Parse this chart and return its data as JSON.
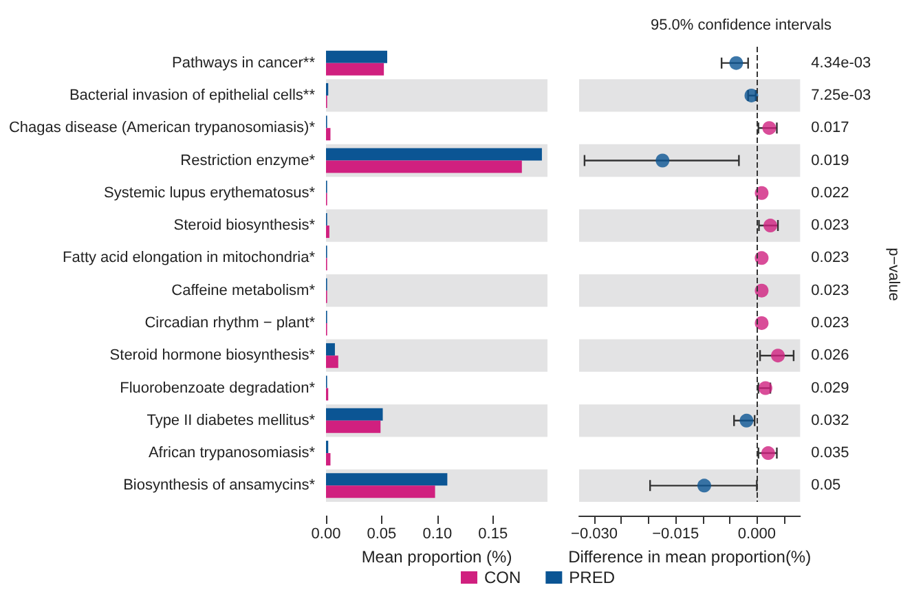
{
  "chart_data": [
    {
      "type": "bar",
      "orientation": "horizontal",
      "xlabel": "Mean proportion (%)",
      "categories": [
        "Pathways in cancer**",
        "Bacterial invasion of epithelial cells**",
        "Chagas disease (American trypanosomiasis)*",
        "Restriction enzyme*",
        "Systemic lupus erythematosus*",
        "Steroid biosynthesis*",
        "Fatty acid elongation in mitochondria*",
        "Caffeine metabolism*",
        "Circadian rhythm − plant*",
        "Steroid hormone biosynthesis*",
        "Fluorobenzoate degradation*",
        "Type II diabetes mellitus*",
        "African trypanosomiasis*",
        "Biosynthesis of ansamycins*"
      ],
      "series": [
        {
          "name": "CON",
          "color": "#d0207f",
          "values": [
            0.052,
            0.001,
            0.004,
            0.176,
            0.001,
            0.003,
            0.001,
            0.001,
            0.001,
            0.011,
            0.002,
            0.049,
            0.004,
            0.098
          ]
        },
        {
          "name": "PRED",
          "color": "#0b5594",
          "values": [
            0.055,
            0.002,
            0.001,
            0.194,
            0.001,
            0.001,
            0.001,
            0.001,
            0.001,
            0.008,
            0.001,
            0.051,
            0.002,
            0.109
          ]
        }
      ],
      "xlim": [
        0,
        0.199
      ],
      "xticks": [
        {
          "value": 0,
          "label": "0.00"
        },
        {
          "value": 0.05,
          "label": "0.05"
        },
        {
          "value": 0.1,
          "label": "0.10"
        },
        {
          "value": 0.15,
          "label": "0.15"
        }
      ],
      "legend": "bottom",
      "grid": false
    },
    {
      "type": "scatter",
      "orientation": "horizontal",
      "title": "95.0% confidence intervals",
      "xlabel": "Difference in mean proportion(%)",
      "y2label": "p−value",
      "y2_categories": [
        "4.34e-03",
        "7.25e-03",
        "0.017",
        "0.019",
        "0.022",
        "0.023",
        "0.023",
        "0.023",
        "0.023",
        "0.026",
        "0.029",
        "0.032",
        "0.035",
        "0.05"
      ],
      "values": [
        -0.0038,
        -0.001,
        0.0023,
        -0.0174,
        0.0009,
        0.0025,
        0.0009,
        0.0009,
        0.0009,
        0.0039,
        0.0016,
        -0.0019,
        0.0021,
        -0.0097
      ],
      "errors": [
        [
          -0.0065,
          -0.0016
        ],
        [
          -0.0016,
          -0.0002
        ],
        [
          0.0003,
          0.0037
        ],
        [
          -0.0318,
          -0.0033
        ],
        null,
        [
          0.0004,
          0.0039
        ],
        null,
        null,
        null,
        [
          0.0006,
          0.0068
        ],
        [
          0.0003,
          0.0025
        ],
        [
          -0.0042,
          -0.0004
        ],
        [
          0.0003,
          0.0037
        ],
        [
          -0.0197,
          0.0
        ]
      ],
      "colors": [
        "#0b5594",
        "#0b5594",
        "#d0207f",
        "#0b5594",
        "#d0207f",
        "#d0207f",
        "#d0207f",
        "#d0207f",
        "#d0207f",
        "#d0207f",
        "#d0207f",
        "#0b5594",
        "#d0207f",
        "#0b5594"
      ],
      "marker": "circle",
      "xlim": [
        -0.0328,
        0.008
      ],
      "xticks": [
        {
          "value": -0.03,
          "label": "−0.030"
        },
        {
          "value": -0.025,
          "label": null
        },
        {
          "value": -0.02,
          "label": null
        },
        {
          "value": -0.015,
          "label": "−0.015"
        },
        {
          "value": -0.01,
          "label": null
        },
        {
          "value": -0.005,
          "label": null
        },
        {
          "value": 0,
          "label": "0.000"
        },
        {
          "value": 0.005,
          "label": null
        }
      ],
      "ref_lines": [
        {
          "axis": "x",
          "value": 0,
          "line_style": "dashed",
          "color": "#333333"
        }
      ],
      "grid": false
    }
  ]
}
